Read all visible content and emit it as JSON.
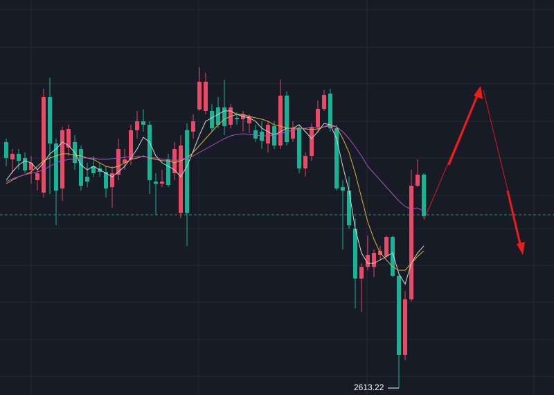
{
  "chart_data": {
    "type": "candlestick",
    "ylim": [
      2603.22,
      3173.22
    ],
    "up_color": "#e84a67",
    "down_color": "#14b597",
    "open": [
      2968.22,
      2943.22,
      2951.22,
      2945.22,
      2928.22,
      2913.22,
      2895.22,
      3033.22,
      2966.22,
      2901.22,
      2960.22,
      2968.22,
      2958.22,
      2918.22,
      2933.22,
      2930.22,
      2925.22,
      2903.22,
      2921.22,
      2938.22,
      2943.22,
      2985.22,
      2998.22,
      2993.22,
      2911.22,
      2908.22,
      2943.22,
      2923.22,
      2866.22,
      2985.22,
      2983.22,
      3015.22,
      3013.22,
      3013.22,
      3018.22,
      3018.22,
      2993.22,
      3003.22,
      3001.22,
      2995.22,
      2985.22,
      2983.22,
      2966.22,
      2991.22,
      2963.22,
      3035.22,
      2973.22,
      2988.22,
      2930.22,
      2948.22,
      2990.22,
      3016.22,
      3038.22,
      2988.22,
      2903.22,
      2898.22,
      2843.22,
      2771.22,
      2788.22,
      2788.22,
      2805.22,
      2803.22,
      2831.22,
      2775.22,
      2661.22,
      2741.22,
      2905.22,
      2921.22
    ],
    "high": [
      2973.22,
      2958.22,
      2958.22,
      2953.22,
      2948.22,
      2928.22,
      3045.22,
      3061.22,
      2973.22,
      2990.22,
      2993.22,
      2978.22,
      2963.22,
      2938.22,
      2948.22,
      2938.22,
      2933.22,
      2933.22,
      2973.22,
      2958.22,
      2993.22,
      3013.22,
      3015.22,
      2998.22,
      2923.22,
      2928.22,
      2951.22,
      2968.22,
      2978.22,
      2995.22,
      3008.22,
      3076.22,
      3068.22,
      3023.22,
      3033.22,
      3058.22,
      3023.22,
      3011.22,
      3013.22,
      3008.22,
      2993.22,
      2998.22,
      2998.22,
      2998.22,
      3058.22,
      3041.22,
      2998.22,
      2993.22,
      2953.22,
      2995.22,
      3028.22,
      3043.22,
      3045.22,
      2993.22,
      2913.22,
      2918.22,
      2858.22,
      2793.22,
      2833.22,
      2813.22,
      2818.22,
      2833.22,
      2833.22,
      2777.22,
      2753.22,
      2928.22,
      2943.22,
      2923.22
    ],
    "low": [
      2933.22,
      2923.22,
      2928.22,
      2923.22,
      2908.22,
      2898.22,
      2888.22,
      2893.22,
      2848.22,
      2883.22,
      2948.22,
      2928.22,
      2898.22,
      2903.22,
      2918.22,
      2918.22,
      2888.22,
      2873.22,
      2913.22,
      2928.22,
      2935.22,
      2973.22,
      2983.22,
      2893.22,
      2863.22,
      2903.22,
      2903.22,
      2913.22,
      2858.22,
      2818.22,
      2973.22,
      3013.22,
      3008.22,
      2983.22,
      2988.22,
      2978.22,
      2988.22,
      2993.22,
      2983.22,
      2981.22,
      2968.22,
      2958.22,
      2953.22,
      2958.22,
      2958.22,
      2963.22,
      2968.22,
      2923.22,
      2918.22,
      2941.22,
      2983.22,
      3013.22,
      2983.22,
      2898.22,
      2813.22,
      2843.22,
      2728.22,
      2723.22,
      2783.22,
      2773.22,
      2798.22,
      2801.22,
      2773.22,
      2613.22,
      2653.22,
      2738.22,
      2903.22,
      2858.22
    ],
    "close": [
      2945.22,
      2951.22,
      2941.22,
      2927.22,
      2938.22,
      2923.22,
      3033.22,
      2966.22,
      2898.22,
      2985.22,
      2987.22,
      2938.22,
      2905.22,
      2911.22,
      2923.22,
      2925.22,
      2901.22,
      2923.22,
      2958.22,
      2943.22,
      2985.22,
      2998.22,
      2993.22,
      2913.22,
      2908.22,
      2911.22,
      2906.22,
      2958.22,
      2963.22,
      2866.22,
      2998.22,
      3055.22,
      3055.22,
      2988.22,
      2993.22,
      2991.22,
      3018.22,
      3001.22,
      3008.22,
      3005.22,
      2973.22,
      2970.22,
      2993.22,
      2963.22,
      3035.22,
      2968.22,
      2988.22,
      2930.22,
      2948.22,
      2990.22,
      3016.22,
      3036.22,
      2988.22,
      2901.22,
      2898.22,
      2848.22,
      2771.22,
      2788.22,
      2805.22,
      2808.22,
      2811.22,
      2831.22,
      2775.22,
      2661.22,
      2741.22,
      2905.22,
      2921.22,
      2861.22
    ],
    "ma_lines": [
      {
        "color": "#d8d8d8",
        "values": [
          2913.22,
          2925.22,
          2935.22,
          2941.22,
          2938.22,
          2928.22,
          2938.22,
          2951.22,
          2958.22,
          2968.22,
          2963.22,
          2953.22,
          2935.22,
          2928.22,
          2933.22,
          2928.22,
          2923.22,
          2918.22,
          2925.22,
          2933.22,
          2945.22,
          2958.22,
          2975.22,
          2968.22,
          2948.22,
          2938.22,
          2933.22,
          2928.22,
          2918.22,
          2933.22,
          2955.22,
          2978.22,
          2998.22,
          3003.22,
          3008.22,
          3013.22,
          3013.22,
          3008.22,
          3005.22,
          3003.22,
          2998.22,
          2988.22,
          2983.22,
          2978.22,
          2983.22,
          2988.22,
          2988.22,
          2993.22,
          2983.22,
          2973.22,
          2983.22,
          2995.22,
          2993.22,
          2973.22,
          2933.22,
          2898.22,
          2843.22,
          2808.22,
          2793.22,
          2793.22,
          2798.22,
          2803.22,
          2808.22,
          2778.22,
          2763.22,
          2793.22,
          2808.22,
          2818.22
        ]
      },
      {
        "color": "#e3b23c",
        "values": [
          2908.22,
          2913.22,
          2918.22,
          2921.22,
          2925.22,
          2933.22,
          2941.22,
          2945.22,
          2948.22,
          2951.22,
          2951.22,
          2949.22,
          2948.22,
          2945.22,
          2943.22,
          2938.22,
          2933.22,
          2931.22,
          2933.22,
          2938.22,
          2943.22,
          2945.22,
          2948.22,
          2945.22,
          2943.22,
          2941.22,
          2941.22,
          2938.22,
          2941.22,
          2945.22,
          2953.22,
          2963.22,
          2973.22,
          2983.22,
          2993.22,
          3001.22,
          3005.22,
          3008.22,
          3008.22,
          3005.22,
          3003.22,
          3001.22,
          2998.22,
          2993.22,
          2991.22,
          2988.22,
          2988.22,
          2988.22,
          2987.22,
          2986.22,
          2987.22,
          2990.22,
          2993.22,
          2990.22,
          2973.22,
          2953.22,
          2923.22,
          2888.22,
          2853.22,
          2828.22,
          2808.22,
          2798.22,
          2788.22,
          2783.22,
          2783.22,
          2793.22,
          2803.22,
          2811.22
        ]
      },
      {
        "color": "#b04fc9",
        "values": [
          2911.22,
          2915.22,
          2918.22,
          2921.22,
          2923.22,
          2925.22,
          2928.22,
          2933.22,
          2938.22,
          2941.22,
          2943.22,
          2943.22,
          2945.22,
          2945.22,
          2945.22,
          2943.22,
          2943.22,
          2944.22,
          2945.22,
          2946.22,
          2947.22,
          2947.22,
          2947.22,
          2946.22,
          2945.22,
          2943.22,
          2943.22,
          2941.22,
          2943.22,
          2945.22,
          2948.22,
          2953.22,
          2958.22,
          2963.22,
          2968.22,
          2973.22,
          2977.22,
          2979.22,
          2980.22,
          2979.22,
          2978.22,
          2977.22,
          2977.22,
          2978.22,
          2980.22,
          2983.22,
          2985.22,
          2987.22,
          2988.22,
          2989.22,
          2989.22,
          2990.22,
          2991.22,
          2990.22,
          2983.22,
          2973.22,
          2961.22,
          2948.22,
          2933.22,
          2923.22,
          2913.22,
          2903.22,
          2893.22,
          2883.22,
          2875.22,
          2871.22,
          2873.22,
          2868.22
        ]
      }
    ],
    "price_line": 2863.22,
    "min_label": 2613.22
  }
}
